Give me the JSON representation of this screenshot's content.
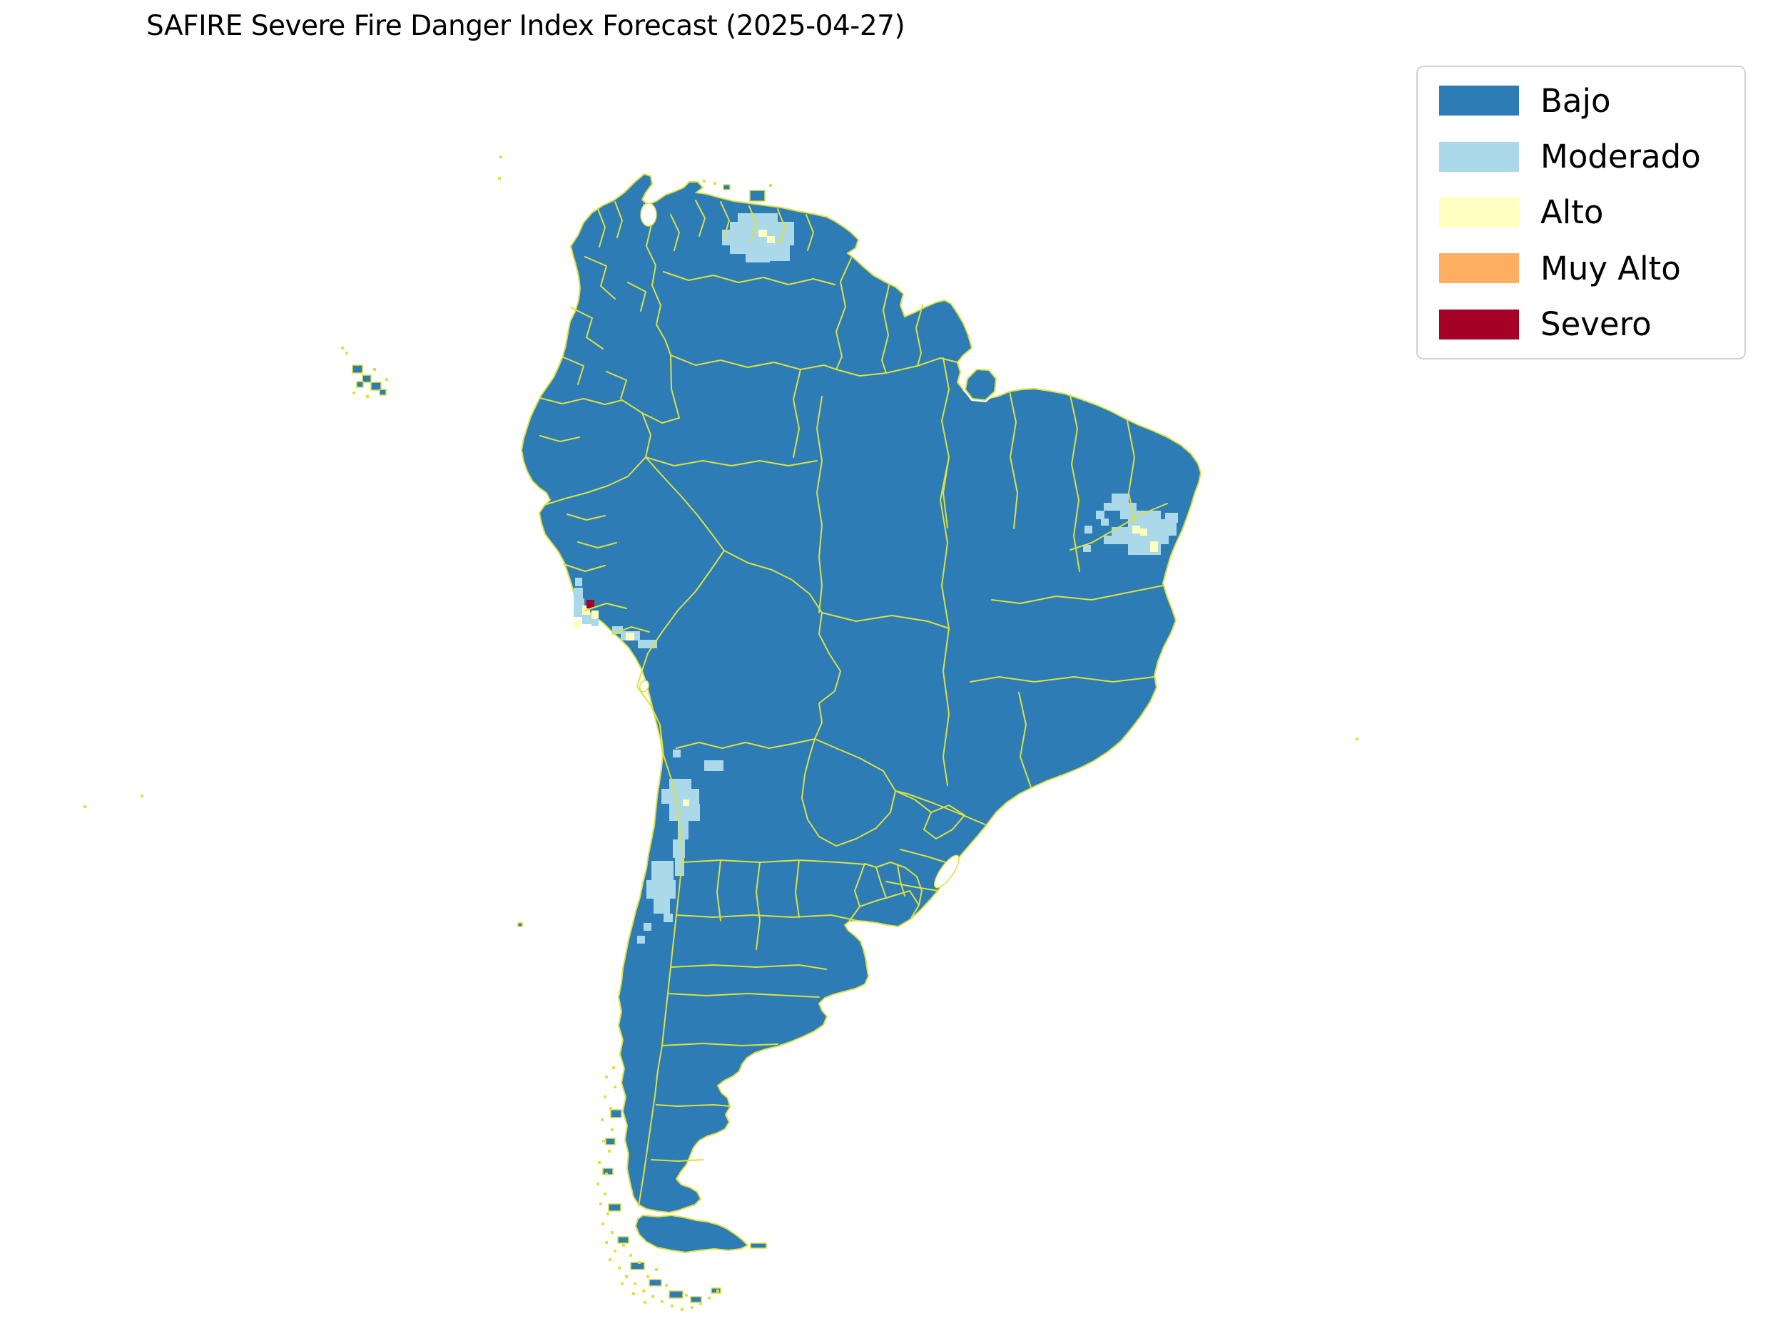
{
  "title": "SAFIRE Severe Fire Danger Index Forecast (2025-04-27)",
  "legend": {
    "items": [
      {
        "id": "bajo",
        "label": "Bajo",
        "color": "#2d7cb6"
      },
      {
        "id": "moderado",
        "label": "Moderado",
        "color": "#abd9e9"
      },
      {
        "id": "alto",
        "label": "Alto",
        "color": "#ffffbf"
      },
      {
        "id": "muy_alto",
        "label": "Muy Alto",
        "color": "#fdae61"
      },
      {
        "id": "severo",
        "label": "Severo",
        "color": "#a50026"
      }
    ]
  },
  "map": {
    "colors": {
      "land": "#2d7cb6",
      "boundary": "#dde13c",
      "water": "#ffffff"
    },
    "patches": [
      {
        "class": "moderado",
        "rects": [
          [
            1034,
            299,
            56,
            12
          ],
          [
            1023,
            311,
            79,
            11
          ],
          [
            1012,
            322,
            101,
            22
          ],
          [
            1023,
            344,
            68,
            12
          ],
          [
            1045,
            356,
            34,
            12
          ],
          [
            1079,
            344,
            28,
            22
          ],
          [
            1090,
            322,
            23,
            11
          ],
          [
            1101,
            311,
            12,
            11
          ],
          [
            1558,
            692,
            24,
            13
          ],
          [
            1547,
            705,
            46,
            11
          ],
          [
            1536,
            716,
            12,
            12
          ],
          [
            1570,
            716,
            57,
            12
          ],
          [
            1581,
            728,
            68,
            11
          ],
          [
            1558,
            739,
            91,
            12
          ],
          [
            1547,
            751,
            23,
            12
          ],
          [
            1570,
            751,
            68,
            12
          ],
          [
            1581,
            763,
            46,
            15
          ],
          [
            1633,
            719,
            18,
            14
          ],
          [
            1520,
            737,
            11,
            11
          ],
          [
            1543,
            727,
            11,
            10
          ],
          [
            1518,
            764,
            11,
            10
          ],
          [
            804,
            824,
            13,
            15
          ],
          [
            804,
            839,
            15,
            26
          ],
          [
            816,
            861,
            13,
            14
          ],
          [
            829,
            868,
            10,
            10
          ],
          [
            858,
            878,
            15,
            11
          ],
          [
            870,
            885,
            27,
            13
          ],
          [
            894,
            897,
            27,
            12
          ],
          [
            806,
            810,
            10,
            12
          ],
          [
            987,
            1066,
            27,
            15
          ],
          [
            943,
            1051,
            11,
            11
          ],
          [
            938,
            1092,
            31,
            14
          ],
          [
            927,
            1106,
            53,
            21
          ],
          [
            938,
            1127,
            43,
            24
          ],
          [
            950,
            1151,
            15,
            26
          ],
          [
            943,
            1177,
            17,
            26
          ],
          [
            946,
            1203,
            13,
            25
          ],
          [
            913,
            1207,
            31,
            27
          ],
          [
            906,
            1234,
            41,
            26
          ],
          [
            916,
            1260,
            23,
            21
          ],
          [
            930,
            1281,
            13,
            12
          ],
          [
            902,
            1294,
            11,
            11
          ],
          [
            893,
            1312,
            11,
            11
          ]
        ]
      },
      {
        "class": "alto",
        "rects": [
          [
            1063,
            322,
            12,
            10
          ],
          [
            1075,
            331,
            11,
            10
          ],
          [
            1587,
            737,
            11,
            11
          ],
          [
            1598,
            741,
            10,
            10
          ],
          [
            1612,
            759,
            11,
            15
          ],
          [
            816,
            849,
            11,
            13
          ],
          [
            829,
            856,
            10,
            11
          ],
          [
            877,
            887,
            12,
            11
          ],
          [
            804,
            870,
            10,
            10
          ],
          [
            957,
            1121,
            9,
            9
          ]
        ]
      },
      {
        "class": "severo",
        "rects": [
          [
            822,
            841,
            11,
            12
          ]
        ]
      }
    ],
    "islets": [
      [
        494,
        512,
        14,
        11
      ],
      [
        508,
        526,
        12,
        10
      ],
      [
        520,
        536,
        14,
        11
      ],
      [
        532,
        546,
        9,
        8
      ],
      [
        500,
        535,
        9,
        8
      ],
      [
        1051,
        267,
        21,
        15
      ],
      [
        1014,
        259,
        9,
        7
      ],
      [
        1052,
        1743,
        22,
        7
      ],
      [
        856,
        1556,
        15,
        11
      ],
      [
        849,
        1596,
        13,
        9
      ],
      [
        845,
        1638,
        14,
        9
      ],
      [
        853,
        1688,
        17,
        10
      ],
      [
        866,
        1734,
        15,
        9
      ],
      [
        884,
        1770,
        19,
        10
      ],
      [
        910,
        1794,
        17,
        9
      ],
      [
        938,
        1810,
        19,
        10
      ],
      [
        968,
        1818,
        15,
        8
      ],
      [
        997,
        1806,
        13,
        7
      ],
      [
        726,
        1294,
        6,
        5
      ]
    ],
    "specks": [
      [
        478,
        486
      ],
      [
        484,
        493
      ],
      [
        523,
        516
      ],
      [
        540,
        530
      ],
      [
        494,
        549
      ],
      [
        513,
        554
      ],
      [
        700,
        218
      ],
      [
        698,
        248
      ],
      [
        985,
        252
      ],
      [
        1000,
        255
      ],
      [
        1078,
        258
      ],
      [
        117,
        1129
      ],
      [
        197,
        1114
      ],
      [
        1900,
        1034
      ],
      [
        858,
        1495
      ],
      [
        848,
        1508
      ],
      [
        860,
        1522
      ],
      [
        846,
        1536
      ],
      [
        854,
        1552
      ],
      [
        842,
        1568
      ],
      [
        856,
        1582
      ],
      [
        844,
        1598
      ],
      [
        852,
        1612
      ],
      [
        838,
        1628
      ],
      [
        848,
        1644
      ],
      [
        836,
        1658
      ],
      [
        846,
        1672
      ],
      [
        840,
        1686
      ],
      [
        850,
        1700
      ],
      [
        843,
        1714
      ],
      [
        856,
        1726
      ],
      [
        848,
        1740
      ],
      [
        860,
        1752
      ],
      [
        853,
        1764
      ],
      [
        866,
        1776
      ],
      [
        876,
        1788
      ],
      [
        888,
        1798
      ],
      [
        900,
        1808
      ],
      [
        913,
        1816
      ],
      [
        926,
        1823
      ],
      [
        940,
        1829
      ],
      [
        954,
        1834
      ],
      [
        968,
        1831
      ],
      [
        980,
        1826
      ],
      [
        992,
        1818
      ],
      [
        1004,
        1808
      ],
      [
        906,
        1788
      ],
      [
        918,
        1778
      ],
      [
        882,
        1758
      ],
      [
        872,
        1744
      ],
      [
        894,
        1768
      ],
      [
        932,
        1800
      ],
      [
        960,
        1814
      ],
      [
        870,
        1798
      ],
      [
        886,
        1812
      ],
      [
        902,
        1824
      ]
    ],
    "lakes": [
      [
        909,
        301,
        11,
        16,
        0
      ],
      [
        903,
        962,
        6,
        8,
        20
      ],
      [
        1327,
        1222,
        9,
        27,
        35
      ]
    ]
  }
}
